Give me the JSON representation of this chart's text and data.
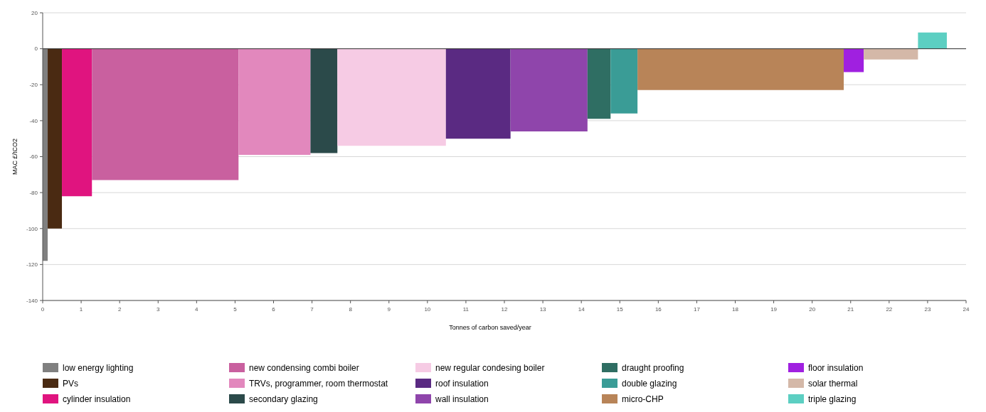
{
  "chart_data": {
    "type": "area",
    "xlabel": "Tonnes of carbon saved/year",
    "ylabel": "MAC £/tCO2",
    "xlim": [
      0,
      24
    ],
    "ylim": [
      -140,
      20
    ],
    "xticks": [
      0,
      1,
      2,
      3,
      4,
      5,
      6,
      7,
      8,
      9,
      10,
      11,
      12,
      13,
      14,
      15,
      16,
      17,
      18,
      19,
      20,
      21,
      22,
      23,
      24
    ],
    "yticks": [
      20,
      0,
      -20,
      -40,
      -60,
      -80,
      -100,
      -120,
      -140
    ],
    "grid": "y",
    "legend": "bottom",
    "series": [
      {
        "name": "low energy lighting",
        "color": "#808080",
        "x": [
          0,
          0.13
        ],
        "values": [
          -118,
          -118
        ]
      },
      {
        "name": "PVs",
        "color": "#4a2a12",
        "x": [
          0.13,
          0.5
        ],
        "values": [
          -100,
          -100
        ]
      },
      {
        "name": "cylinder insulation",
        "color": "#e0147f",
        "x": [
          0.5,
          1.28
        ],
        "values": [
          -82,
          -82
        ]
      },
      {
        "name": "new condensing combi boiler",
        "color": "#c9609f",
        "x": [
          1.28,
          5.09
        ],
        "values": [
          -73,
          -73
        ]
      },
      {
        "name": "TRVs, programmer, room thermostat",
        "color": "#e288bd",
        "x": [
          5.09,
          6.96
        ],
        "values": [
          -59,
          -59
        ]
      },
      {
        "name": "secondary glazing",
        "color": "#2b4a4a",
        "x": [
          6.96,
          7.66
        ],
        "values": [
          -58,
          -58
        ]
      },
      {
        "name": "new regular condesing boiler",
        "color": "#f6cbe4",
        "x": [
          7.66,
          10.48
        ],
        "values": [
          -54,
          -54
        ]
      },
      {
        "name": "roof insulation",
        "color": "#5a2a82",
        "x": [
          10.48,
          12.16
        ],
        "values": [
          -50,
          -50
        ]
      },
      {
        "name": "wall insulation",
        "color": "#8f45ab",
        "x": [
          12.16,
          14.16
        ],
        "values": [
          -46,
          -46
        ]
      },
      {
        "name": "draught proofing",
        "color": "#2f6e63",
        "x": [
          14.16,
          14.76
        ],
        "values": [
          -39,
          -39
        ]
      },
      {
        "name": "double glazing",
        "color": "#3a9c96",
        "x": [
          14.76,
          15.46
        ],
        "values": [
          -36,
          -36
        ]
      },
      {
        "name": "micro-CHP",
        "color": "#b88458",
        "x": [
          15.46,
          20.82
        ],
        "values": [
          -23,
          -23
        ]
      },
      {
        "name": "floor insulation",
        "color": "#a020e0",
        "x": [
          20.82,
          21.34
        ],
        "values": [
          -13,
          -13
        ]
      },
      {
        "name": "solar thermal",
        "color": "#d4b8a8",
        "x": [
          21.34,
          22.75
        ],
        "values": [
          -6,
          -6
        ]
      },
      {
        "name": "triple glazing",
        "color": "#5ccfc2",
        "x": [
          22.75,
          23.5
        ],
        "values": [
          9,
          9
        ]
      }
    ]
  }
}
